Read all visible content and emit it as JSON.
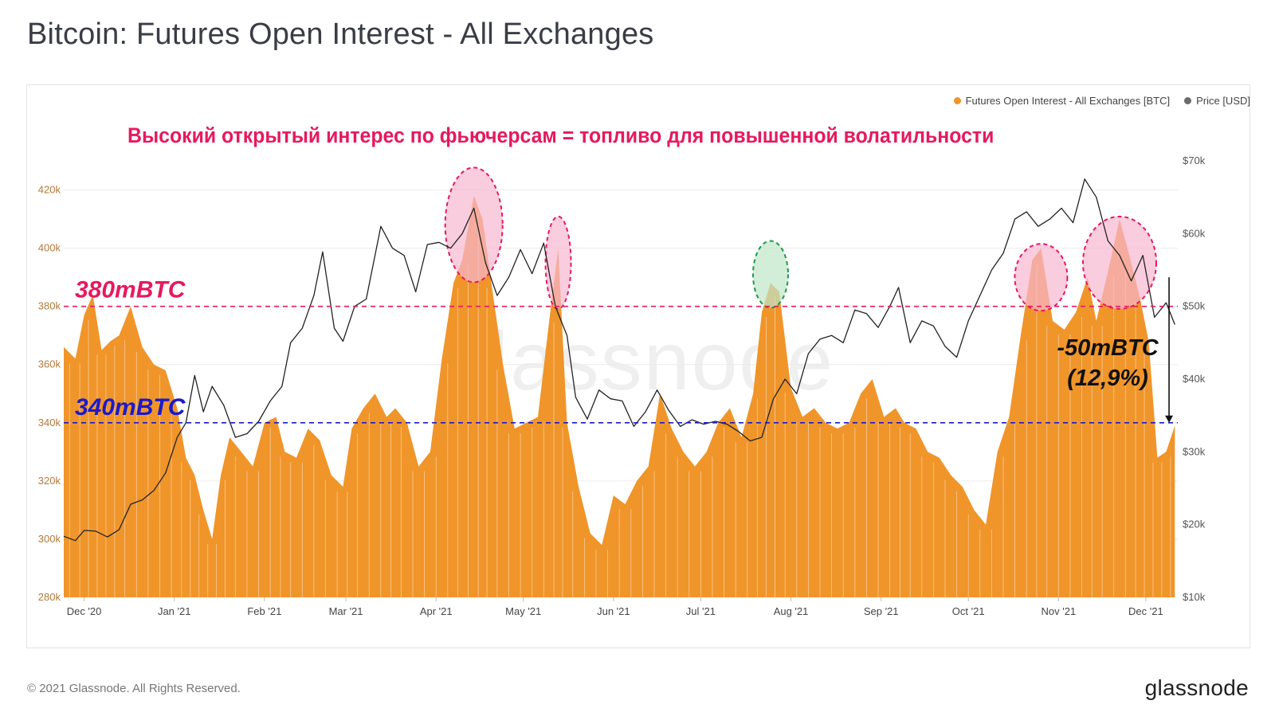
{
  "page": {
    "title": "Bitcoin: Futures Open Interest - All Exchanges",
    "copyright": "© 2021 Glassnode. All Rights Reserved.",
    "logo": "glassnode",
    "watermark": "glassnode"
  },
  "colors": {
    "oi_fill": "#f0952a",
    "price_line": "#222222",
    "level_380": "#e6195f",
    "level_340": "#1a1acc",
    "ellipse_red": "#e6195f",
    "ellipse_red_fill": "#f7b6d0",
    "ellipse_green": "#1d9a4a",
    "ellipse_green_fill": "#bfe6c8",
    "left_axis": "#b27a3a",
    "right_axis": "#555555"
  },
  "chart_data": {
    "type": "area",
    "title": "Bitcoin: Futures Open Interest - All Exchanges",
    "legend_placement": "top-right",
    "grid": true,
    "x_range": [
      "2020-11-24",
      "2021-12-12"
    ],
    "x_ticks": [
      "Dec '20",
      "Jan '21",
      "Feb '21",
      "Mar '21",
      "Apr '21",
      "May '21",
      "Jun '21",
      "Jul '21",
      "Aug '21",
      "Sep '21",
      "Oct '21",
      "Nov '21",
      "Dec '21"
    ],
    "y_left": {
      "ticks": [
        "280k",
        "300k",
        "320k",
        "340k",
        "360k",
        "380k",
        "400k",
        "420k"
      ],
      "range": [
        280000,
        430000
      ]
    },
    "y_right": {
      "ticks": [
        "$10k",
        "$20k",
        "$30k",
        "$40k",
        "$50k",
        "$60k",
        "$70k"
      ],
      "range": [
        10000,
        70000
      ]
    },
    "series": [
      {
        "name": "Futures Open Interest - All Exchanges [BTC]",
        "unit": "BTC",
        "axis": "left",
        "x": [
          "2020-11-24",
          "2020-11-28",
          "2020-12-01",
          "2020-12-04",
          "2020-12-07",
          "2020-12-10",
          "2020-12-13",
          "2020-12-17",
          "2020-12-21",
          "2020-12-25",
          "2020-12-29",
          "2021-01-02",
          "2021-01-05",
          "2021-01-08",
          "2021-01-11",
          "2021-01-14",
          "2021-01-17",
          "2021-01-20",
          "2021-01-24",
          "2021-01-28",
          "2021-02-01",
          "2021-02-05",
          "2021-02-08",
          "2021-02-12",
          "2021-02-16",
          "2021-02-20",
          "2021-02-24",
          "2021-02-28",
          "2021-03-03",
          "2021-03-07",
          "2021-03-11",
          "2021-03-15",
          "2021-03-18",
          "2021-03-22",
          "2021-03-26",
          "2021-03-30",
          "2021-04-03",
          "2021-04-07",
          "2021-04-10",
          "2021-04-14",
          "2021-04-17",
          "2021-04-20",
          "2021-04-24",
          "2021-04-28",
          "2021-05-02",
          "2021-05-06",
          "2021-05-10",
          "2021-05-13",
          "2021-05-16",
          "2021-05-20",
          "2021-05-24",
          "2021-05-28",
          "2021-06-01",
          "2021-06-05",
          "2021-06-09",
          "2021-06-13",
          "2021-06-17",
          "2021-06-21",
          "2021-06-25",
          "2021-06-29",
          "2021-07-03",
          "2021-07-07",
          "2021-07-11",
          "2021-07-15",
          "2021-07-19",
          "2021-07-22",
          "2021-07-25",
          "2021-07-28",
          "2021-08-01",
          "2021-08-05",
          "2021-08-09",
          "2021-08-13",
          "2021-08-17",
          "2021-08-21",
          "2021-08-25",
          "2021-08-29",
          "2021-09-02",
          "2021-09-06",
          "2021-09-09",
          "2021-09-13",
          "2021-09-17",
          "2021-09-21",
          "2021-09-25",
          "2021-09-29",
          "2021-10-03",
          "2021-10-07",
          "2021-10-11",
          "2021-10-15",
          "2021-10-19",
          "2021-10-23",
          "2021-10-26",
          "2021-10-30",
          "2021-11-03",
          "2021-11-07",
          "2021-11-11",
          "2021-11-14",
          "2021-11-18",
          "2021-11-22",
          "2021-11-26",
          "2021-11-29",
          "2021-12-02",
          "2021-12-05",
          "2021-12-08",
          "2021-12-11"
        ],
        "values": [
          366000,
          362000,
          377000,
          384000,
          365000,
          368000,
          370000,
          380000,
          366000,
          360000,
          358000,
          345000,
          328000,
          322000,
          310000,
          300000,
          322000,
          335000,
          330000,
          325000,
          340000,
          342000,
          330000,
          328000,
          338000,
          334000,
          322000,
          318000,
          338000,
          345000,
          350000,
          342000,
          345000,
          340000,
          325000,
          330000,
          362000,
          388000,
          396000,
          418000,
          410000,
          388000,
          360000,
          338000,
          340000,
          342000,
          376000,
          400000,
          340000,
          318000,
          302000,
          298000,
          315000,
          312000,
          320000,
          325000,
          350000,
          338000,
          330000,
          325000,
          330000,
          340000,
          345000,
          335000,
          350000,
          378000,
          388000,
          385000,
          352000,
          342000,
          345000,
          340000,
          338000,
          340000,
          350000,
          355000,
          342000,
          345000,
          340000,
          338000,
          330000,
          328000,
          322000,
          318000,
          310000,
          305000,
          330000,
          342000,
          370000,
          396000,
          400000,
          375000,
          372000,
          378000,
          390000,
          375000,
          392000,
          410000,
          395000,
          383000,
          368000,
          328000,
          330000,
          339000
        ]
      },
      {
        "name": "Price [USD]",
        "unit": "USD",
        "axis": "right",
        "x": [
          "2020-11-24",
          "2020-11-28",
          "2020-12-01",
          "2020-12-05",
          "2020-12-09",
          "2020-12-13",
          "2020-12-17",
          "2020-12-21",
          "2020-12-25",
          "2020-12-29",
          "2021-01-02",
          "2021-01-05",
          "2021-01-08",
          "2021-01-11",
          "2021-01-14",
          "2021-01-18",
          "2021-01-22",
          "2021-01-26",
          "2021-01-30",
          "2021-02-03",
          "2021-02-07",
          "2021-02-10",
          "2021-02-14",
          "2021-02-18",
          "2021-02-21",
          "2021-02-25",
          "2021-02-28",
          "2021-03-04",
          "2021-03-08",
          "2021-03-13",
          "2021-03-17",
          "2021-03-21",
          "2021-03-25",
          "2021-03-29",
          "2021-04-02",
          "2021-04-06",
          "2021-04-10",
          "2021-04-14",
          "2021-04-18",
          "2021-04-22",
          "2021-04-26",
          "2021-04-30",
          "2021-05-04",
          "2021-05-08",
          "2021-05-12",
          "2021-05-16",
          "2021-05-19",
          "2021-05-23",
          "2021-05-27",
          "2021-05-31",
          "2021-06-04",
          "2021-06-08",
          "2021-06-12",
          "2021-06-16",
          "2021-06-20",
          "2021-06-24",
          "2021-06-28",
          "2021-07-02",
          "2021-07-06",
          "2021-07-10",
          "2021-07-14",
          "2021-07-18",
          "2021-07-22",
          "2021-07-26",
          "2021-07-30",
          "2021-08-03",
          "2021-08-07",
          "2021-08-11",
          "2021-08-15",
          "2021-08-19",
          "2021-08-23",
          "2021-08-27",
          "2021-08-31",
          "2021-09-04",
          "2021-09-07",
          "2021-09-11",
          "2021-09-15",
          "2021-09-19",
          "2021-09-23",
          "2021-09-27",
          "2021-10-01",
          "2021-10-05",
          "2021-10-09",
          "2021-10-13",
          "2021-10-17",
          "2021-10-21",
          "2021-10-25",
          "2021-10-29",
          "2021-11-02",
          "2021-11-06",
          "2021-11-10",
          "2021-11-14",
          "2021-11-18",
          "2021-11-22",
          "2021-11-26",
          "2021-11-30",
          "2021-12-04",
          "2021-12-08",
          "2021-12-11"
        ],
        "values": [
          18400,
          17800,
          19200,
          19100,
          18300,
          19300,
          22800,
          23400,
          24700,
          27100,
          32000,
          34000,
          40500,
          35500,
          39000,
          36400,
          32000,
          32500,
          34200,
          37000,
          39000,
          45000,
          47000,
          51500,
          57500,
          47000,
          45200,
          50000,
          51000,
          61000,
          58000,
          57000,
          52000,
          58500,
          58800,
          58000,
          60000,
          63500,
          56000,
          51500,
          54000,
          57800,
          54500,
          58700,
          50000,
          46000,
          37500,
          34500,
          38500,
          37300,
          37000,
          33500,
          35500,
          38500,
          35700,
          33500,
          34400,
          33800,
          34200,
          33800,
          32800,
          31500,
          32000,
          37300,
          40000,
          38000,
          43500,
          45500,
          46000,
          45000,
          49500,
          49000,
          47100,
          50000,
          52600,
          45000,
          48000,
          47300,
          44500,
          43000,
          48000,
          51500,
          55000,
          57300,
          62000,
          63000,
          61000,
          62000,
          63500,
          61500,
          67500,
          65000,
          59000,
          57000,
          53500,
          57000,
          48500,
          50500,
          47500
        ]
      }
    ],
    "annotations": {
      "headline": "Высокий открытый интерес по фьючерсам = топливо для повышенной волатильности",
      "level_high_label": "380mBTC",
      "level_high_value": 380000,
      "level_low_label": "340mBTC",
      "level_low_value": 340000,
      "drop_label": "-50mBTC",
      "drop_pct": "(12,9%)",
      "highlighted_peaks": [
        {
          "date": "2021-04-14",
          "oi": 408000,
          "color": "red"
        },
        {
          "date": "2021-05-13",
          "oi": 395000,
          "color": "red"
        },
        {
          "date": "2021-07-25",
          "oi": 391000,
          "color": "green"
        },
        {
          "date": "2021-10-26",
          "oi": 390000,
          "color": "red"
        },
        {
          "date": "2021-11-22",
          "oi": 395000,
          "color": "red"
        }
      ],
      "drop_arrow": {
        "date": "2021-12-09",
        "from": 390000,
        "to": 340000
      }
    }
  }
}
